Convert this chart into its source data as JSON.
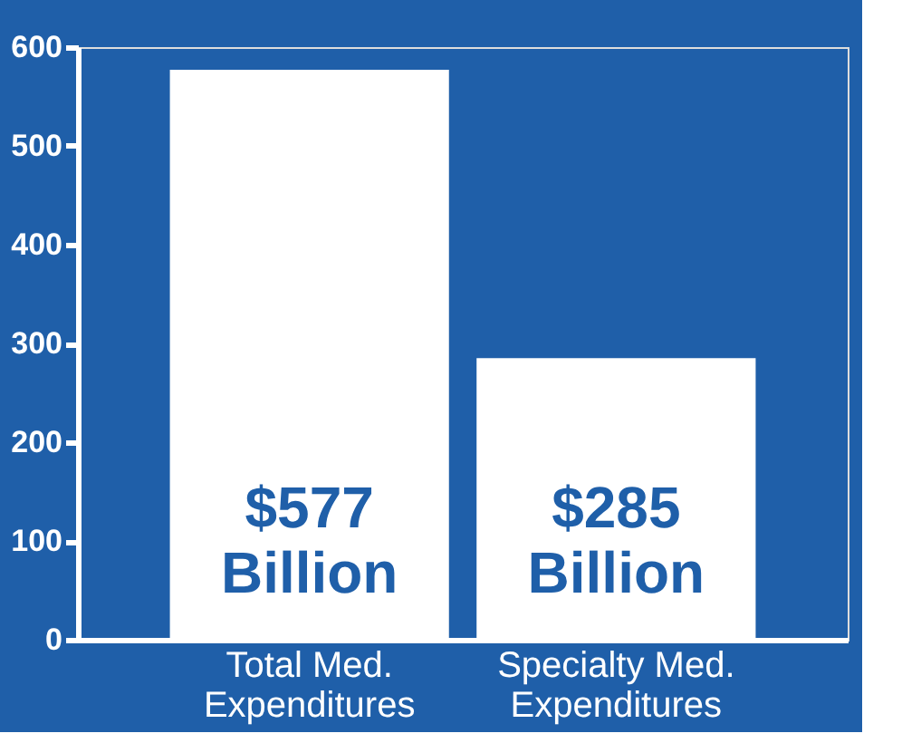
{
  "chart_data": {
    "type": "bar",
    "categories": [
      "Total Med. Expenditures",
      "Specialty Med. Expenditures"
    ],
    "values": [
      577,
      285
    ],
    "color": "#ffffff",
    "value_labels": [
      "$577 Billion",
      "$285 Billion"
    ],
    "ylim": [
      0,
      600
    ],
    "yticks": [
      0,
      100,
      200,
      300,
      400,
      500,
      600
    ],
    "grid": false
  }
}
